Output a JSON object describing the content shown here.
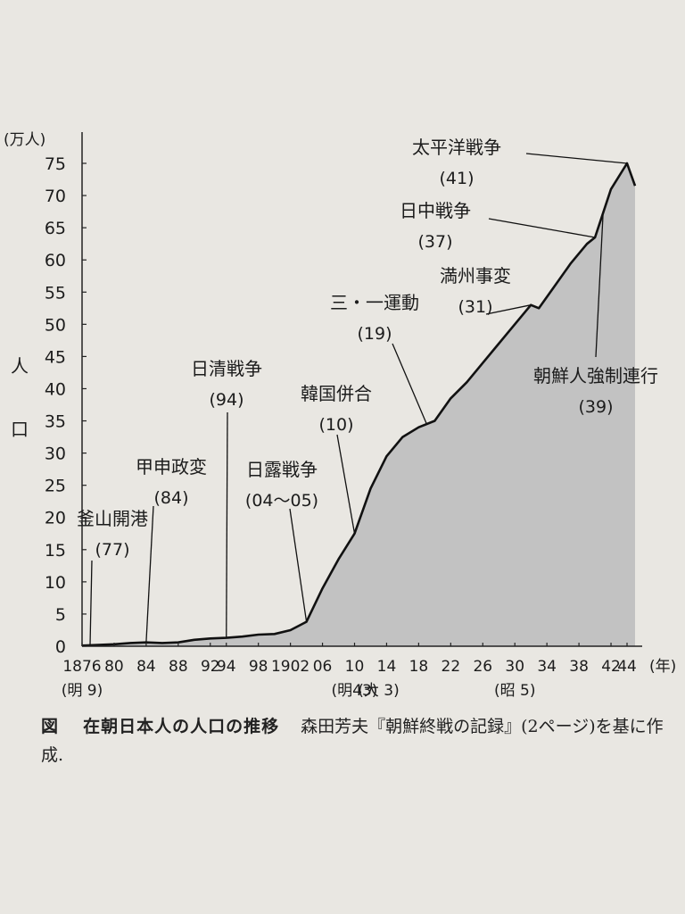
{
  "chart_data": {
    "type": "area",
    "title": "",
    "y_unit": "(万人)",
    "ylabel": [
      "人",
      "口"
    ],
    "x_unit": "(年)",
    "ylim": [
      0,
      75
    ],
    "xlim": [
      1876,
      1945
    ],
    "yticks": [
      0,
      5,
      10,
      15,
      20,
      25,
      30,
      35,
      40,
      45,
      50,
      55,
      60,
      65,
      70,
      75
    ],
    "xticks": [
      {
        "x": 1876,
        "label": "1876"
      },
      {
        "x": 1880,
        "label": "80"
      },
      {
        "x": 1884,
        "label": "84"
      },
      {
        "x": 1888,
        "label": "88"
      },
      {
        "x": 1892,
        "label": "92"
      },
      {
        "x": 1894,
        "label": "94"
      },
      {
        "x": 1898,
        "label": "98"
      },
      {
        "x": 1902,
        "label": "1902"
      },
      {
        "x": 1906,
        "label": "06"
      },
      {
        "x": 1910,
        "label": "10"
      },
      {
        "x": 1914,
        "label": "14"
      },
      {
        "x": 1918,
        "label": "18"
      },
      {
        "x": 1922,
        "label": "22"
      },
      {
        "x": 1926,
        "label": "26"
      },
      {
        "x": 1930,
        "label": "30"
      },
      {
        "x": 1934,
        "label": "34"
      },
      {
        "x": 1938,
        "label": "38"
      },
      {
        "x": 1942,
        "label": "42"
      },
      {
        "x": 1944,
        "label": "44"
      }
    ],
    "era_labels": [
      {
        "x": 1876,
        "label": "(明 9)"
      },
      {
        "x": 1910,
        "label": "(明43)"
      },
      {
        "x": 1913,
        "label": "(大 3)"
      },
      {
        "x": 1930,
        "label": "(昭 5)"
      }
    ],
    "series": [
      {
        "x": [
          1876,
          1880,
          1882,
          1884,
          1886,
          1888,
          1890,
          1892,
          1894,
          1896,
          1898,
          1900,
          1902,
          1904,
          1906,
          1908,
          1910,
          1912,
          1914,
          1916,
          1918,
          1920,
          1922,
          1924,
          1926,
          1928,
          1930,
          1932,
          1933,
          1935,
          1937,
          1939,
          1940,
          1942,
          1944,
          1945
        ],
        "values": [
          0.1,
          0.3,
          0.5,
          0.6,
          0.5,
          0.6,
          1.0,
          1.2,
          1.3,
          1.5,
          1.8,
          1.9,
          2.5,
          3.8,
          9.0,
          13.5,
          17.5,
          24.5,
          29.5,
          32.5,
          34.0,
          35.0,
          38.5,
          41.0,
          44.0,
          47.0,
          50.0,
          53.0,
          52.5,
          56.0,
          59.5,
          62.5,
          63.5,
          71.0,
          75.0,
          71.5
        ]
      }
    ],
    "annotations": [
      {
        "text": "釜山開港",
        "sub": "(77)",
        "x": 1877,
        "y": 0.1
      },
      {
        "text": "甲申政変",
        "sub": "(84)",
        "x": 1884,
        "y": 0.6
      },
      {
        "text": "日清戦争",
        "sub": "(94)",
        "x": 1894,
        "y": 1.3
      },
      {
        "text": "日露戦争",
        "sub": "(04～05)",
        "x": 1904,
        "y": 3.8
      },
      {
        "text": "韓国併合",
        "sub": "(10)",
        "x": 1910,
        "y": 17.5
      },
      {
        "text": "三・一運動",
        "sub": "(19)",
        "x": 1919,
        "y": 34.5
      },
      {
        "text": "満州事変",
        "sub": "(31)",
        "x": 1932,
        "y": 53.0
      },
      {
        "text": "日中戦争",
        "sub": "(37)",
        "x": 1940,
        "y": 63.5
      },
      {
        "text": "太平洋戦争",
        "sub": "(41)",
        "x": 1944,
        "y": 75.0
      },
      {
        "text": "朝鮮人強制連行",
        "sub": "(39)",
        "x": 1941,
        "y": 67.0
      }
    ]
  },
  "caption": {
    "figure": "図",
    "title": "在朝日本人の人口の推移",
    "source": "森田芳夫『朝鮮終戦の記録』(2ページ)を基に作成."
  },
  "colors": {
    "fill": "#c2c2c2",
    "line": "#111111",
    "axis": "#222222",
    "text": "#1c1c1c"
  }
}
